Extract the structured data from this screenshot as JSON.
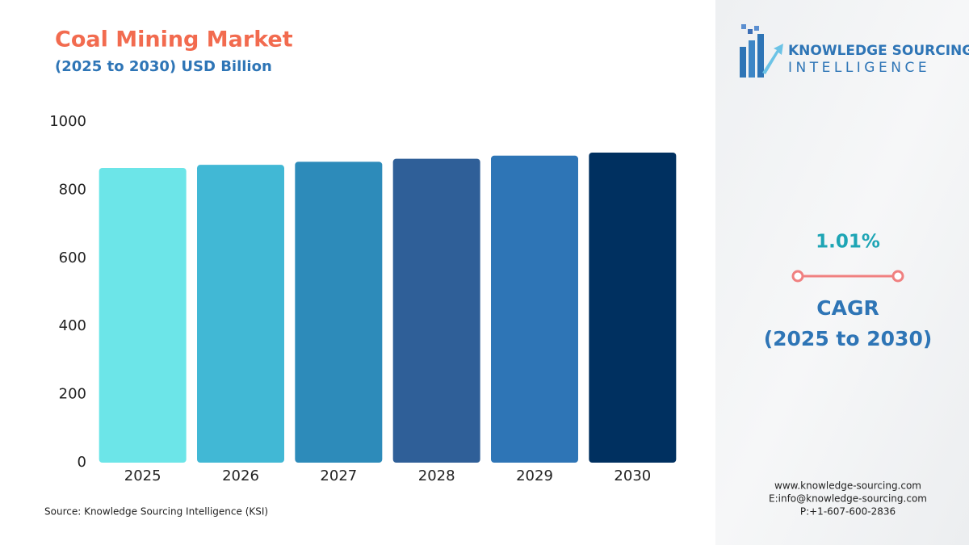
{
  "chart_data": {
    "type": "bar",
    "title": "Coal Mining Market",
    "subtitle": "(2025 to 2030) USD Billion",
    "categories": [
      "2025",
      "2026",
      "2027",
      "2028",
      "2029",
      "2030"
    ],
    "values": [
      865,
      874,
      883,
      892,
      901,
      910
    ],
    "colors": [
      "#6ce5e8",
      "#41b8d5",
      "#2d8bba",
      "#2f5f98",
      "#2e75b6",
      "#003060"
    ],
    "ylim": [
      0,
      1000
    ],
    "yticks": [
      0,
      200,
      400,
      600,
      800,
      1000
    ],
    "grid": false,
    "source": "Source: Knowledge Sourcing Intelligence (KSI)"
  },
  "sidebar": {
    "brand_line1": "KNOWLEDGE SOURCING",
    "brand_line2": "INTELLIGENCE",
    "cagr_value": "1.01%",
    "cagr_label": "CAGR",
    "cagr_period": "(2025 to 2030)",
    "website": "www.knowledge-sourcing.com",
    "email": "E:info@knowledge-sourcing.com",
    "phone": "P:+1-607-600-2836"
  }
}
